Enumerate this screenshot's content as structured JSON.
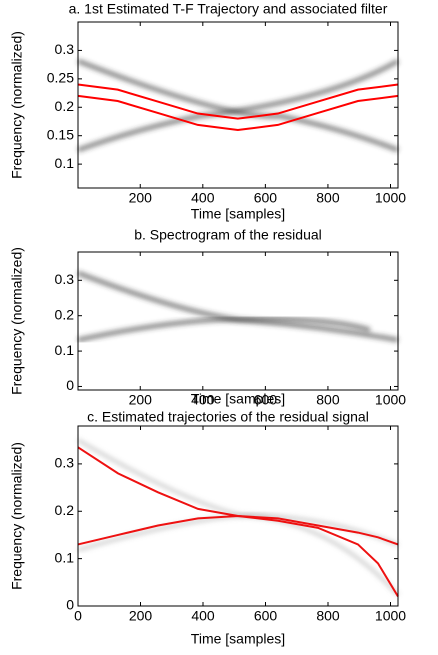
{
  "chart_data": [
    {
      "type": "line",
      "title": "a. 1st Estimated T-F Trajectory and associated filter",
      "x_label": "Time [samples]",
      "y_label": "Frequency (normalized)",
      "x": [
        1,
        128,
        256,
        384,
        512,
        640,
        768,
        896,
        1024
      ],
      "series": [
        {
          "color": "#ff0000",
          "values": [
            0.24,
            0.231,
            0.21,
            0.189,
            0.18,
            0.189,
            0.21,
            0.231,
            0.24
          ]
        },
        {
          "color": "#ff0000",
          "values": [
            0.22,
            0.211,
            0.19,
            0.169,
            0.16,
            0.169,
            0.19,
            0.211,
            0.22
          ]
        }
      ],
      "xlim": [
        1,
        1024
      ],
      "xticks": [
        200,
        400,
        600,
        800,
        1000
      ],
      "ylim": [
        0.058,
        0.35
      ],
      "yticks": [
        0.1,
        0.15,
        0.2,
        0.25,
        0.3
      ]
    },
    {
      "type": "line",
      "title": "b. Spectrogram of the residual",
      "x_label": "Time [samples]",
      "y_label": "Frequency (normalized)",
      "x": [],
      "series": [],
      "xlim": [
        1,
        1024
      ],
      "xticks": [
        200,
        400,
        600,
        800,
        1000
      ],
      "ylim": [
        -0.01,
        0.38
      ],
      "yticks": [
        0,
        0.1,
        0.2,
        0.3
      ]
    },
    {
      "type": "line",
      "title": "c. Estimated trajectories of the residual signal",
      "x_label": "Time [samples]",
      "y_label": "Frequency (normalized)",
      "x": [
        0,
        128,
        256,
        384,
        512,
        640,
        768,
        896,
        960,
        1024
      ],
      "series": [
        {
          "color": "#ee1111",
          "values": [
            0.335,
            0.28,
            0.24,
            0.205,
            0.19,
            0.18,
            0.165,
            0.13,
            0.09,
            0.02
          ]
        },
        {
          "color": "#ee1111",
          "values": [
            0.13,
            0.15,
            0.17,
            0.185,
            0.19,
            0.185,
            0.17,
            0.155,
            0.145,
            0.13
          ]
        }
      ],
      "xlim": [
        0,
        1024
      ],
      "xticks": [
        0,
        200,
        400,
        600,
        800,
        1000
      ],
      "ylim": [
        0,
        0.38
      ],
      "yticks": [
        0,
        0.1,
        0.2,
        0.3
      ]
    }
  ]
}
